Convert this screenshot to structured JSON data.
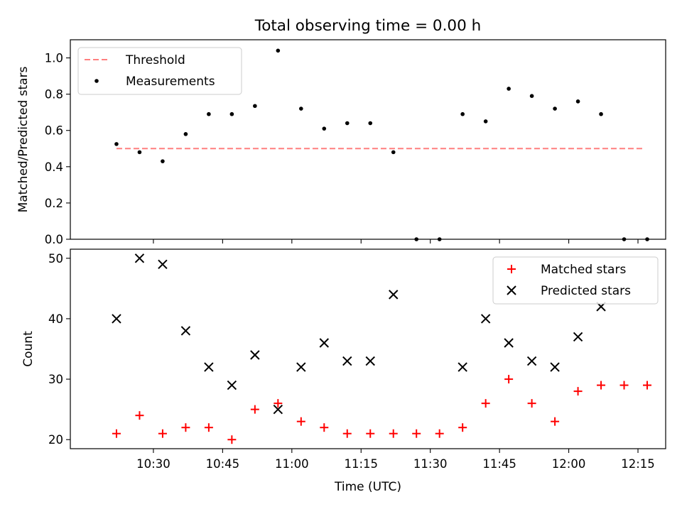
{
  "figure": {
    "title": "Total observing time = 0.00 h",
    "xlabel": "Time (UTC)"
  },
  "chart_data": [
    {
      "type": "scatter",
      "ylabel": "Matched/Predicted stars",
      "ylim": [
        0.0,
        1.1
      ],
      "yticks": [
        "0.0",
        "0.2",
        "0.4",
        "0.6",
        "0.8",
        "1.0"
      ],
      "xlim": [
        "10:12",
        "12:21"
      ],
      "legend_position": "top-left",
      "threshold": {
        "name": "Threshold",
        "value": 0.5,
        "x_start": "10:22",
        "x_end": "12:16",
        "color": "#ff7f7f",
        "style": "dashed"
      },
      "series": [
        {
          "name": "Measurements",
          "color": "#000000",
          "marker": "dot",
          "x": [
            "10:22",
            "10:27",
            "10:32",
            "10:37",
            "10:42",
            "10:47",
            "10:52",
            "10:57",
            "11:02",
            "11:07",
            "11:12",
            "11:17",
            "11:22",
            "11:27",
            "11:32",
            "11:37",
            "11:42",
            "11:47",
            "11:52",
            "11:57",
            "12:02",
            "12:07",
            "12:12",
            "12:17"
          ],
          "y": [
            0.525,
            0.48,
            0.43,
            0.58,
            0.69,
            0.69,
            0.735,
            1.04,
            0.72,
            0.61,
            0.64,
            0.64,
            0.48,
            0.0,
            0.0,
            0.69,
            0.65,
            0.83,
            0.79,
            0.72,
            0.76,
            0.69,
            0.0,
            0.0
          ]
        }
      ]
    },
    {
      "type": "scatter",
      "ylabel": "Count",
      "ylim": [
        18.5,
        51.5
      ],
      "yticks": [
        "20",
        "30",
        "40",
        "50"
      ],
      "xlim": [
        "10:12",
        "12:21"
      ],
      "xticks": [
        "10:30",
        "10:45",
        "11:00",
        "11:15",
        "11:30",
        "11:45",
        "12:00",
        "12:15"
      ],
      "legend_position": "top-right",
      "series": [
        {
          "name": "Matched stars",
          "color": "#ff0000",
          "marker": "plus",
          "x": [
            "10:22",
            "10:27",
            "10:32",
            "10:37",
            "10:42",
            "10:47",
            "10:52",
            "10:57",
            "11:02",
            "11:07",
            "11:12",
            "11:17",
            "11:22",
            "11:27",
            "11:32",
            "11:37",
            "11:42",
            "11:47",
            "11:52",
            "11:57",
            "12:02",
            "12:07",
            "12:12",
            "12:17"
          ],
          "y": [
            21,
            24,
            21,
            22,
            22,
            20,
            25,
            26,
            23,
            22,
            21,
            21,
            21,
            21,
            21,
            22,
            26,
            30,
            26,
            23,
            28,
            29,
            29,
            29
          ]
        },
        {
          "name": "Predicted stars",
          "color": "#000000",
          "marker": "x",
          "x": [
            "10:22",
            "10:27",
            "10:32",
            "10:37",
            "10:42",
            "10:47",
            "10:52",
            "10:57",
            "11:02",
            "11:07",
            "11:12",
            "11:17",
            "11:22",
            "11:37",
            "11:42",
            "11:47",
            "11:52",
            "11:57",
            "12:02",
            "12:07"
          ],
          "y": [
            40,
            50,
            49,
            38,
            32,
            29,
            34,
            25,
            32,
            36,
            33,
            33,
            44,
            32,
            40,
            36,
            33,
            32,
            37,
            42
          ]
        }
      ]
    }
  ]
}
